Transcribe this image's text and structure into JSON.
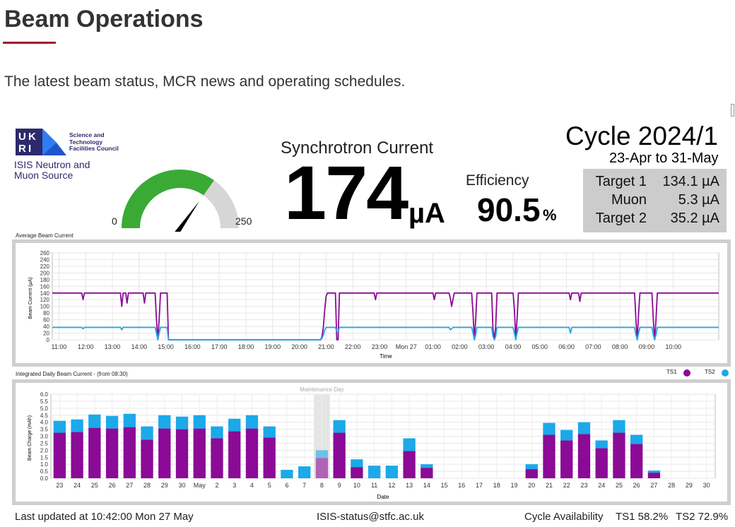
{
  "header": {
    "title": "Beam Operations",
    "subtitle": "The latest beam status, MCR news and operating schedules."
  },
  "logo": {
    "ukri_letters": [
      "U",
      "K",
      "R",
      "I"
    ],
    "stfc_lines": [
      "Science and",
      "Technology",
      "Facilities Council"
    ],
    "isis_lines": [
      "ISIS Neutron and",
      "Muon Source"
    ]
  },
  "gauge": {
    "min_label": "0",
    "max_label": "250",
    "min": 0,
    "max": 250,
    "value": 174,
    "fill_color": "#3aaa35",
    "track_color": "#d6d6d6"
  },
  "synchrotron": {
    "label": "Synchrotron Current",
    "value": "174",
    "unit": "µA"
  },
  "efficiency": {
    "label": "Efficiency",
    "value": "90.5",
    "unit": "%"
  },
  "cycle": {
    "title": "Cycle 2024/1",
    "dates": "23-Apr to 31-May"
  },
  "targets": [
    {
      "name": "Target 1",
      "value": "134.1 µA"
    },
    {
      "name": "Muon",
      "value": "5.3 µA"
    },
    {
      "name": "Target 2",
      "value": "35.2 µA"
    }
  ],
  "colors": {
    "ts1": "#8b0a96",
    "ts2": "#1ba9ea",
    "accent": "#a01d2d"
  },
  "chart_data": [
    {
      "type": "line",
      "title": "Average Beam Current",
      "xlabel": "Time",
      "ylabel": "Beam Current (µA)",
      "ylim": [
        0,
        260
      ],
      "yticks": [
        0,
        20,
        40,
        60,
        80,
        100,
        120,
        140,
        160,
        180,
        200,
        220,
        240,
        260
      ],
      "xlim": [
        10.75,
        35.7
      ],
      "xticks": [
        {
          "x": 11,
          "label": "11:00"
        },
        {
          "x": 12,
          "label": "12:00"
        },
        {
          "x": 13,
          "label": "13:00"
        },
        {
          "x": 14,
          "label": "14:00"
        },
        {
          "x": 15,
          "label": "15:00"
        },
        {
          "x": 16,
          "label": "16:00"
        },
        {
          "x": 17,
          "label": "17:00"
        },
        {
          "x": 18,
          "label": "18:00"
        },
        {
          "x": 19,
          "label": "19:00"
        },
        {
          "x": 20,
          "label": "20:00"
        },
        {
          "x": 21,
          "label": "21:00"
        },
        {
          "x": 22,
          "label": "22:00"
        },
        {
          "x": 23,
          "label": "23:00"
        },
        {
          "x": 24,
          "label": "Mon 27"
        },
        {
          "x": 25,
          "label": "01:00"
        },
        {
          "x": 26,
          "label": "02:00"
        },
        {
          "x": 27,
          "label": "03:00"
        },
        {
          "x": 28,
          "label": "04:00"
        },
        {
          "x": 29,
          "label": "05:00"
        },
        {
          "x": 30,
          "label": "06:00"
        },
        {
          "x": 31,
          "label": "07:00"
        },
        {
          "x": 32,
          "label": "08:00"
        },
        {
          "x": 33,
          "label": "09:00"
        },
        {
          "x": 34,
          "label": "10:00"
        }
      ],
      "grid": true,
      "series": [
        {
          "name": "TS1",
          "x": [
            10.75,
            11.85,
            11.9,
            11.95,
            13.3,
            13.35,
            13.4,
            13.5,
            13.55,
            13.6,
            14.1,
            14.15,
            14.2,
            14.25,
            14.3,
            14.35,
            14.45,
            14.6,
            14.65,
            14.7,
            14.75,
            14.8,
            15.05,
            15.1,
            15.15,
            20.8,
            20.85,
            20.9,
            20.95,
            21.0,
            21.05,
            21.1,
            21.2,
            21.35,
            21.4,
            21.45,
            21.5,
            22.8,
            22.85,
            22.9,
            25.0,
            25.05,
            25.1,
            25.6,
            25.65,
            25.7,
            25.75,
            25.8,
            26.45,
            26.5,
            26.55,
            26.6,
            26.65,
            27.2,
            27.25,
            27.3,
            27.35,
            27.4,
            28.0,
            28.05,
            28.1,
            28.15,
            28.2,
            30.1,
            30.15,
            30.2,
            30.45,
            30.5,
            30.55,
            30.95,
            31.0,
            32.55,
            32.6,
            32.65,
            32.7,
            32.75,
            32.8,
            33.2,
            33.25,
            33.3,
            33.35,
            33.4,
            35.7
          ],
          "y": [
            140,
            140,
            120,
            140,
            140,
            100,
            140,
            140,
            110,
            140,
            140,
            140,
            110,
            140,
            140,
            140,
            140,
            140,
            60,
            0,
            60,
            140,
            140,
            0,
            0,
            0,
            10,
            40,
            90,
            130,
            140,
            140,
            140,
            140,
            0,
            0,
            140,
            140,
            120,
            140,
            140,
            120,
            140,
            140,
            125,
            100,
            120,
            140,
            140,
            80,
            0,
            60,
            140,
            140,
            30,
            0,
            40,
            140,
            140,
            90,
            0,
            60,
            140,
            140,
            120,
            140,
            140,
            115,
            140,
            140,
            140,
            140,
            60,
            0,
            80,
            140,
            140,
            140,
            60,
            0,
            60,
            140,
            140
          ]
        },
        {
          "name": "TS2",
          "x": [
            10.75,
            11.85,
            11.9,
            11.95,
            13.3,
            13.35,
            13.4,
            14.6,
            14.65,
            14.7,
            14.75,
            14.8,
            15.05,
            15.1,
            15.15,
            20.8,
            20.85,
            20.9,
            20.95,
            21.0,
            21.05,
            21.35,
            21.4,
            21.45,
            21.5,
            25.6,
            25.65,
            25.7,
            25.75,
            26.45,
            26.5,
            26.55,
            26.6,
            26.65,
            27.2,
            27.25,
            27.3,
            27.35,
            27.4,
            28.0,
            28.05,
            28.1,
            28.15,
            28.2,
            30.1,
            30.15,
            30.2,
            32.55,
            32.6,
            32.65,
            32.7,
            32.75,
            33.2,
            33.25,
            33.3,
            33.35,
            33.4,
            35.7
          ],
          "y": [
            37,
            37,
            33,
            37,
            37,
            30,
            37,
            37,
            20,
            0,
            20,
            37,
            37,
            0,
            0,
            0,
            5,
            15,
            30,
            37,
            37,
            37,
            25,
            25,
            37,
            37,
            30,
            33,
            37,
            37,
            20,
            0,
            15,
            37,
            37,
            10,
            0,
            10,
            37,
            37,
            20,
            0,
            20,
            37,
            37,
            20,
            37,
            37,
            15,
            0,
            20,
            37,
            37,
            15,
            0,
            15,
            37,
            37
          ]
        }
      ]
    },
    {
      "type": "bar",
      "title": "Integrated Daily Beam Current - (from 08:30)",
      "xlabel": "Date",
      "ylabel": "Beam Charge (mAh)",
      "ylim": [
        0,
        6
      ],
      "yticks": [
        0.0,
        0.5,
        1.0,
        1.5,
        2.0,
        2.5,
        3.0,
        3.5,
        4.0,
        4.5,
        5.0,
        5.5,
        6.0
      ],
      "stacked": true,
      "grid": true,
      "legend": "top-right",
      "annotation": {
        "label": "Maintenance Day",
        "category": "8"
      },
      "categories": [
        "23",
        "24",
        "25",
        "26",
        "27",
        "28",
        "29",
        "30",
        "May",
        "2",
        "3",
        "4",
        "5",
        "6",
        "7",
        "8",
        "9",
        "10",
        "11",
        "12",
        "13",
        "14",
        "15",
        "16",
        "17",
        "18",
        "19",
        "20",
        "21",
        "22",
        "23",
        "24",
        "25",
        "26",
        "27",
        "28",
        "29",
        "30"
      ],
      "series": [
        {
          "name": "TS1",
          "values": [
            3.25,
            3.3,
            3.6,
            3.55,
            3.65,
            2.75,
            3.55,
            3.5,
            3.55,
            2.85,
            3.35,
            3.55,
            2.9,
            0,
            0,
            1.45,
            3.25,
            0.8,
            0,
            0,
            1.95,
            0.75,
            0,
            0,
            0,
            0,
            0,
            0.65,
            3.1,
            2.7,
            3.15,
            2.15,
            3.25,
            2.45,
            0.4,
            0,
            0,
            0
          ]
        },
        {
          "name": "TS2",
          "values": [
            0.85,
            0.9,
            0.95,
            0.9,
            0.95,
            0.95,
            0.95,
            0.9,
            0.95,
            0.85,
            0.9,
            0.95,
            0.8,
            0.6,
            0.85,
            0.55,
            0.9,
            0.55,
            0.9,
            0.9,
            0.9,
            0.25,
            0,
            0,
            0,
            0,
            0,
            0.35,
            0.85,
            0.75,
            0.85,
            0.55,
            0.9,
            0.65,
            0.15,
            0,
            0,
            0
          ]
        }
      ]
    }
  ],
  "legend": {
    "ts1_label": "TS1",
    "ts2_label": "TS2"
  },
  "footer": {
    "updated": "Last updated at 10:42:00 Mon 27 May",
    "email": "ISIS-status@stfc.ac.uk",
    "availability_label": "Cycle Availability",
    "ts1": "TS1 58.2%",
    "ts2": "TS2 72.9%"
  }
}
